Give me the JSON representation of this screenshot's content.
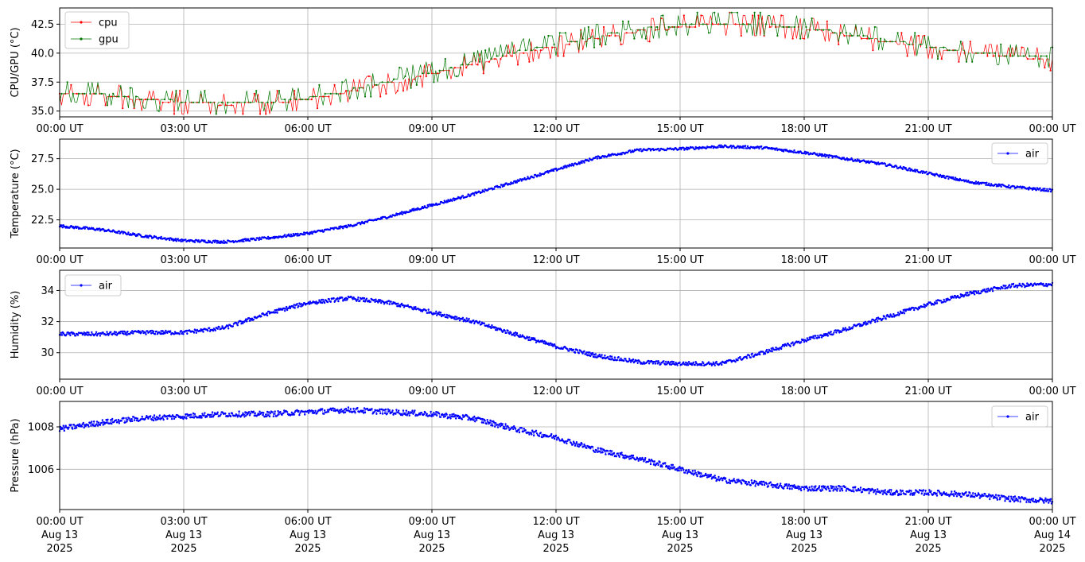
{
  "colors": {
    "cpu": "#ff0000",
    "gpu": "#007700",
    "air": "#0000ff",
    "grid": "#b0b0b0"
  },
  "x_ticks": {
    "times": [
      "00:00 UT",
      "03:00 UT",
      "06:00 UT",
      "09:00 UT",
      "12:00 UT",
      "15:00 UT",
      "18:00 UT",
      "21:00 UT",
      "00:00 UT"
    ],
    "dates": [
      "Aug 13",
      "Aug 13",
      "Aug 13",
      "Aug 13",
      "Aug 13",
      "Aug 13",
      "Aug 13",
      "Aug 13",
      "Aug 14"
    ],
    "years": [
      "2025",
      "2025",
      "2025",
      "2025",
      "2025",
      "2025",
      "2025",
      "2025",
      "2025"
    ]
  },
  "chart_data": [
    {
      "type": "line",
      "ylabel": "CPU/GPU (°C)",
      "x_range_hours": [
        0,
        24
      ],
      "ylim": [
        34.5,
        43.9
      ],
      "yticks": [
        35.0,
        37.5,
        40.0,
        42.5
      ],
      "ytick_labels": [
        "35.0",
        "37.5",
        "40.0",
        "42.5"
      ],
      "grid": true,
      "legend": "upper-left",
      "series": [
        {
          "name": "cpu",
          "color": "#ff0000",
          "anchors_hours": [
            0,
            1,
            2,
            3,
            4,
            5,
            6,
            7,
            8,
            9,
            10,
            11,
            12,
            13,
            14,
            15,
            16,
            17,
            18,
            19,
            20,
            21,
            22,
            23,
            24
          ],
          "anchors_values": [
            36.5,
            36.4,
            36.0,
            35.7,
            35.6,
            35.7,
            36.0,
            36.7,
            37.4,
            38.2,
            39.0,
            39.9,
            40.6,
            41.3,
            41.9,
            42.2,
            42.5,
            42.4,
            42.1,
            41.6,
            41.0,
            40.5,
            40.0,
            39.7,
            39.5
          ]
        },
        {
          "name": "gpu",
          "color": "#007700",
          "anchors_hours": [
            0,
            1,
            2,
            3,
            4,
            5,
            6,
            7,
            8,
            9,
            10,
            11,
            12,
            13,
            14,
            15,
            16,
            17,
            18,
            19,
            20,
            21,
            22,
            23,
            24
          ],
          "anchors_values": [
            36.6,
            36.5,
            36.1,
            35.8,
            35.7,
            35.8,
            36.1,
            36.8,
            37.6,
            38.4,
            39.2,
            40.1,
            40.7,
            41.5,
            42.1,
            42.4,
            42.6,
            42.5,
            42.2,
            41.7,
            41.1,
            40.6,
            40.1,
            39.8,
            39.6
          ]
        }
      ]
    },
    {
      "type": "scatter",
      "ylabel": "Temperature (°C)",
      "x_range_hours": [
        0,
        24
      ],
      "ylim": [
        20.2,
        29.1
      ],
      "yticks": [
        22.5,
        25.0,
        27.5
      ],
      "ytick_labels": [
        "22.5",
        "25.0",
        "27.5"
      ],
      "grid": true,
      "legend": "upper-right",
      "series": [
        {
          "name": "air",
          "color": "#0000ff",
          "anchors_hours": [
            0,
            1,
            2,
            3,
            4,
            5,
            6,
            7,
            8,
            9,
            10,
            11,
            12,
            13,
            14,
            15,
            16,
            17,
            18,
            19,
            20,
            21,
            22,
            23,
            24
          ],
          "anchors_values": [
            22.0,
            21.7,
            21.2,
            20.8,
            20.7,
            21.0,
            21.4,
            22.0,
            22.8,
            23.7,
            24.6,
            25.6,
            26.6,
            27.6,
            28.2,
            28.3,
            28.5,
            28.4,
            28.0,
            27.5,
            27.0,
            26.3,
            25.6,
            25.2,
            24.9
          ]
        }
      ]
    },
    {
      "type": "scatter",
      "ylabel": "Humidity (%)",
      "x_range_hours": [
        0,
        24
      ],
      "ylim": [
        28.3,
        35.3
      ],
      "yticks": [
        30,
        32,
        34
      ],
      "ytick_labels": [
        "30",
        "32",
        "34"
      ],
      "grid": true,
      "legend": "upper-left",
      "series": [
        {
          "name": "air",
          "color": "#0000ff",
          "anchors_hours": [
            0,
            1,
            2,
            3,
            4,
            5,
            6,
            7,
            8,
            9,
            10,
            11,
            12,
            13,
            14,
            15,
            16,
            17,
            18,
            19,
            20,
            21,
            22,
            23,
            24
          ],
          "anchors_values": [
            31.2,
            31.2,
            31.3,
            31.3,
            31.6,
            32.5,
            33.2,
            33.5,
            33.2,
            32.6,
            32.0,
            31.2,
            30.4,
            29.8,
            29.4,
            29.3,
            29.3,
            30.0,
            30.8,
            31.5,
            32.3,
            33.1,
            33.8,
            34.3,
            34.4
          ]
        }
      ]
    },
    {
      "type": "scatter",
      "ylabel": "Pressure (hPa)",
      "x_range_hours": [
        0,
        24
      ],
      "ylim": [
        1004.1,
        1009.2
      ],
      "yticks": [
        1006,
        1008
      ],
      "ytick_labels": [
        "1006",
        "1008"
      ],
      "grid": true,
      "legend": "upper-right",
      "series": [
        {
          "name": "air",
          "color": "#0000ff",
          "anchors_hours": [
            0,
            1,
            2,
            3,
            4,
            5,
            6,
            7,
            8,
            9,
            10,
            11,
            12,
            13,
            14,
            15,
            16,
            17,
            18,
            19,
            20,
            21,
            22,
            23,
            24
          ],
          "anchors_values": [
            1007.9,
            1008.2,
            1008.4,
            1008.5,
            1008.6,
            1008.6,
            1008.7,
            1008.8,
            1008.7,
            1008.6,
            1008.4,
            1007.9,
            1007.5,
            1006.9,
            1006.5,
            1006.0,
            1005.5,
            1005.3,
            1005.1,
            1005.1,
            1004.9,
            1004.9,
            1004.8,
            1004.6,
            1004.5
          ]
        }
      ]
    }
  ]
}
